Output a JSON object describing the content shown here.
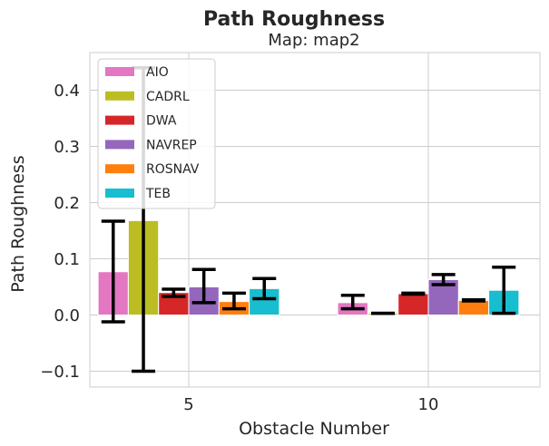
{
  "chart_data": {
    "type": "bar",
    "title": "Path Roughness",
    "subtitle": "Map: map2",
    "xlabel": "Obstacle Number",
    "ylabel": "Path Roughness",
    "categories": [
      "5",
      "10"
    ],
    "ylim": [
      -0.13,
      0.465
    ],
    "yticks": [
      -0.1,
      0.0,
      0.1,
      0.2,
      0.3,
      0.4
    ],
    "ytick_labels": [
      "−0.1",
      "0.0",
      "0.1",
      "0.2",
      "0.3",
      "0.4"
    ],
    "grid": true,
    "legend_position": "top-left",
    "series": [
      {
        "name": "AIO",
        "color": "#e377c2",
        "values": [
          0.077,
          0.022
        ],
        "err_low": [
          -0.012,
          0.011
        ],
        "err_high": [
          0.167,
          0.035
        ]
      },
      {
        "name": "CADRL",
        "color": "#bcbd22",
        "values": [
          0.168,
          0.003
        ],
        "err_low": [
          -0.1,
          0.003
        ],
        "err_high": [
          0.44,
          0.003
        ]
      },
      {
        "name": "DWA",
        "color": "#d62728",
        "values": [
          0.04,
          0.038
        ],
        "err_low": [
          0.033,
          0.037
        ],
        "err_high": [
          0.046,
          0.039
        ]
      },
      {
        "name": "NAVREP",
        "color": "#9467bd",
        "values": [
          0.05,
          0.063
        ],
        "err_low": [
          0.022,
          0.054
        ],
        "err_high": [
          0.081,
          0.072
        ]
      },
      {
        "name": "ROSNAV",
        "color": "#ff7f0e",
        "values": [
          0.024,
          0.026
        ],
        "err_low": [
          0.011,
          0.025
        ],
        "err_high": [
          0.039,
          0.027
        ]
      },
      {
        "name": "TEB",
        "color": "#17becf",
        "values": [
          0.047,
          0.044
        ],
        "err_low": [
          0.029,
          0.003
        ],
        "err_high": [
          0.065,
          0.085
        ]
      }
    ]
  }
}
